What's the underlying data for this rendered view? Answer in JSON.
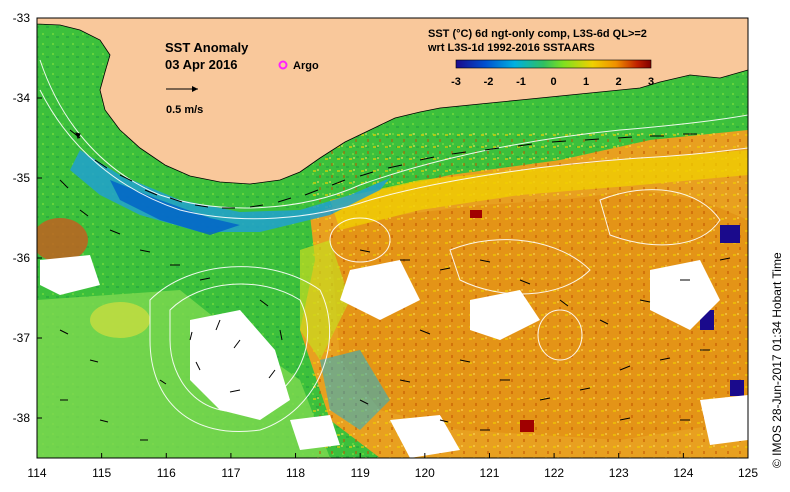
{
  "title": "SST Anomaly",
  "date": "03 Apr 2016",
  "argo_label": "Argo",
  "scale_label": "0.5 m/s",
  "product_line1": "SST (°C) 6d ngt-only comp, L3S-6d QL>=2",
  "product_line2": "wrt L3S-1d 1992-2016 SSTAARS",
  "colorbar": {
    "ticks": [
      "-3",
      "-2",
      "-1",
      "0",
      "1",
      "2",
      "3"
    ],
    "colors": [
      "#1a0a8c",
      "#0050d0",
      "#00b0e0",
      "#30c060",
      "#7ee020",
      "#f0d000",
      "#f09000",
      "#c02000",
      "#800000"
    ]
  },
  "credit": "© IMOS 28-Jun-2017 01:34 Hobart Time",
  "axes": {
    "x_ticks": [
      "114",
      "115",
      "116",
      "117",
      "118",
      "119",
      "120",
      "121",
      "122",
      "123",
      "124",
      "125"
    ],
    "y_ticks": [
      "-33",
      "-34",
      "-35",
      "-36",
      "-37",
      "-38"
    ]
  },
  "colors": {
    "land": "#f9c89b",
    "warm": "#e8a020",
    "green": "#3cc03c",
    "cool": "#20a0d0",
    "nodata": "#ffffff"
  }
}
